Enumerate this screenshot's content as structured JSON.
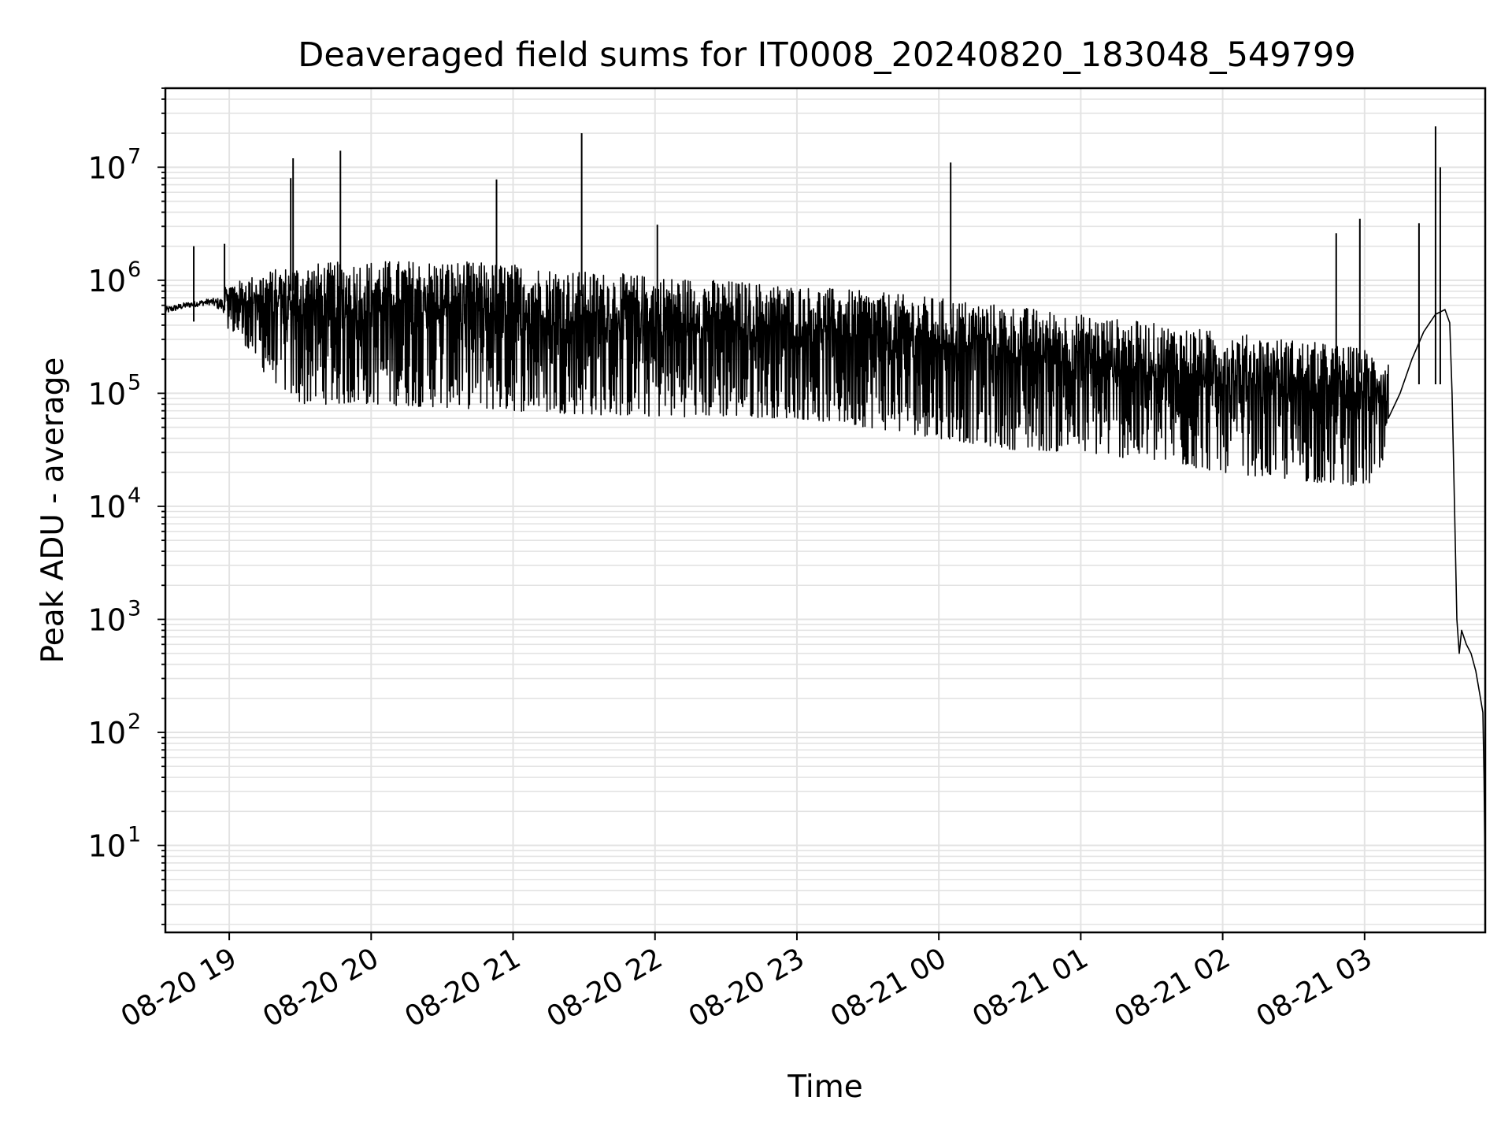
{
  "chart_data": {
    "type": "line",
    "title": "Deaveraged field sums for IT0008_20240820_183048_549799",
    "xlabel": "Time",
    "ylabel": "Peak ADU - average",
    "yscale": "log",
    "grid": true,
    "xlim": [
      "2024-08-20 18:33",
      "2024-08-21 03:51"
    ],
    "ylim": [
      1.7,
      50000000
    ],
    "x_ticks": [
      {
        "value": "2024-08-20 19:00",
        "label": "08-20 19"
      },
      {
        "value": "2024-08-20 20:00",
        "label": "08-20 20"
      },
      {
        "value": "2024-08-20 21:00",
        "label": "08-20 21"
      },
      {
        "value": "2024-08-20 22:00",
        "label": "08-20 22"
      },
      {
        "value": "2024-08-20 23:00",
        "label": "08-20 23"
      },
      {
        "value": "2024-08-21 00:00",
        "label": "08-21 00"
      },
      {
        "value": "2024-08-21 01:00",
        "label": "08-21 01"
      },
      {
        "value": "2024-08-21 02:00",
        "label": "08-21 02"
      },
      {
        "value": "2024-08-21 03:00",
        "label": "08-21 03"
      }
    ],
    "y_ticks": [
      {
        "value": 10,
        "base": "10",
        "exp": "1"
      },
      {
        "value": 100,
        "base": "10",
        "exp": "2"
      },
      {
        "value": 1000,
        "base": "10",
        "exp": "3"
      },
      {
        "value": 10000,
        "base": "10",
        "exp": "4"
      },
      {
        "value": 100000,
        "base": "10",
        "exp": "5"
      },
      {
        "value": 1000000,
        "base": "10",
        "exp": "6"
      },
      {
        "value": 10000000,
        "base": "10",
        "exp": "7"
      }
    ],
    "series": [
      {
        "color": "#000000",
        "envelope": [
          {
            "x": "2024-08-20 18:33",
            "lo": 450000,
            "hi": 650000
          },
          {
            "x": "2024-08-20 18:42",
            "lo": 520000,
            "hi": 700000
          },
          {
            "x": "2024-08-20 18:52",
            "lo": 550000,
            "hi": 760000
          },
          {
            "x": "2024-08-20 18:58",
            "lo": 400000,
            "hi": 900000
          },
          {
            "x": "2024-08-20 19:05",
            "lo": 300000,
            "hi": 1000000
          },
          {
            "x": "2024-08-20 19:15",
            "lo": 150000,
            "hi": 1200000
          },
          {
            "x": "2024-08-20 19:30",
            "lo": 80000,
            "hi": 1400000
          },
          {
            "x": "2024-08-20 20:00",
            "lo": 80000,
            "hi": 1500000
          },
          {
            "x": "2024-08-20 20:30",
            "lo": 75000,
            "hi": 1500000
          },
          {
            "x": "2024-08-20 21:00",
            "lo": 70000,
            "hi": 1400000
          },
          {
            "x": "2024-08-20 21:30",
            "lo": 65000,
            "hi": 1200000
          },
          {
            "x": "2024-08-20 22:00",
            "lo": 62000,
            "hi": 1100000
          },
          {
            "x": "2024-08-20 22:30",
            "lo": 62000,
            "hi": 1000000
          },
          {
            "x": "2024-08-20 23:00",
            "lo": 60000,
            "hi": 900000
          },
          {
            "x": "2024-08-20 23:30",
            "lo": 50000,
            "hi": 800000
          },
          {
            "x": "2024-08-21 00:00",
            "lo": 40000,
            "hi": 700000
          },
          {
            "x": "2024-08-21 00:30",
            "lo": 32000,
            "hi": 600000
          },
          {
            "x": "2024-08-21 01:00",
            "lo": 30000,
            "hi": 500000
          },
          {
            "x": "2024-08-21 01:30",
            "lo": 25000,
            "hi": 420000
          },
          {
            "x": "2024-08-21 02:00",
            "lo": 20000,
            "hi": 350000
          },
          {
            "x": "2024-08-21 02:30",
            "lo": 17000,
            "hi": 300000
          },
          {
            "x": "2024-08-21 03:00",
            "lo": 15000,
            "hi": 250000
          },
          {
            "x": "2024-08-21 03:10",
            "lo": 18000,
            "hi": 200000
          }
        ],
        "spikes": [
          {
            "x": "2024-08-20 18:45",
            "y": 2000000
          },
          {
            "x": "2024-08-20 18:58",
            "y": 2100000
          },
          {
            "x": "2024-08-20 19:26",
            "y": 8000000
          },
          {
            "x": "2024-08-20 19:27",
            "y": 12000000
          },
          {
            "x": "2024-08-20 19:47",
            "y": 14000000
          },
          {
            "x": "2024-08-20 20:53",
            "y": 7800000
          },
          {
            "x": "2024-08-20 21:29",
            "y": 20000000
          },
          {
            "x": "2024-08-20 22:01",
            "y": 3100000
          },
          {
            "x": "2024-08-21 00:05",
            "y": 11000000
          },
          {
            "x": "2024-08-21 02:48",
            "y": 2600000
          },
          {
            "x": "2024-08-21 02:58",
            "y": 3500000
          },
          {
            "x": "2024-08-21 03:23",
            "y": 3200000
          },
          {
            "x": "2024-08-21 03:30",
            "y": 23000000
          },
          {
            "x": "2024-08-21 03:32",
            "y": 10000000
          }
        ],
        "tail": [
          {
            "x": "2024-08-21 03:10",
            "y": 60000
          },
          {
            "x": "2024-08-21 03:15",
            "y": 100000
          },
          {
            "x": "2024-08-21 03:20",
            "y": 200000
          },
          {
            "x": "2024-08-21 03:25",
            "y": 350000
          },
          {
            "x": "2024-08-21 03:30",
            "y": 500000
          },
          {
            "x": "2024-08-21 03:34",
            "y": 550000
          },
          {
            "x": "2024-08-21 03:36",
            "y": 420000
          },
          {
            "x": "2024-08-21 03:37",
            "y": 100000
          },
          {
            "x": "2024-08-21 03:38",
            "y": 10000
          },
          {
            "x": "2024-08-21 03:39",
            "y": 1000
          },
          {
            "x": "2024-08-21 03:40",
            "y": 500
          },
          {
            "x": "2024-08-21 03:41",
            "y": 800
          },
          {
            "x": "2024-08-21 03:43",
            "y": 600
          },
          {
            "x": "2024-08-21 03:45",
            "y": 500
          },
          {
            "x": "2024-08-21 03:47",
            "y": 350
          },
          {
            "x": "2024-08-21 03:49",
            "y": 200
          },
          {
            "x": "2024-08-21 03:50",
            "y": 150
          },
          {
            "x": "2024-08-21 03:50.5",
            "y": 40
          },
          {
            "x": "2024-08-21 03:51",
            "y": 4
          }
        ]
      }
    ]
  }
}
